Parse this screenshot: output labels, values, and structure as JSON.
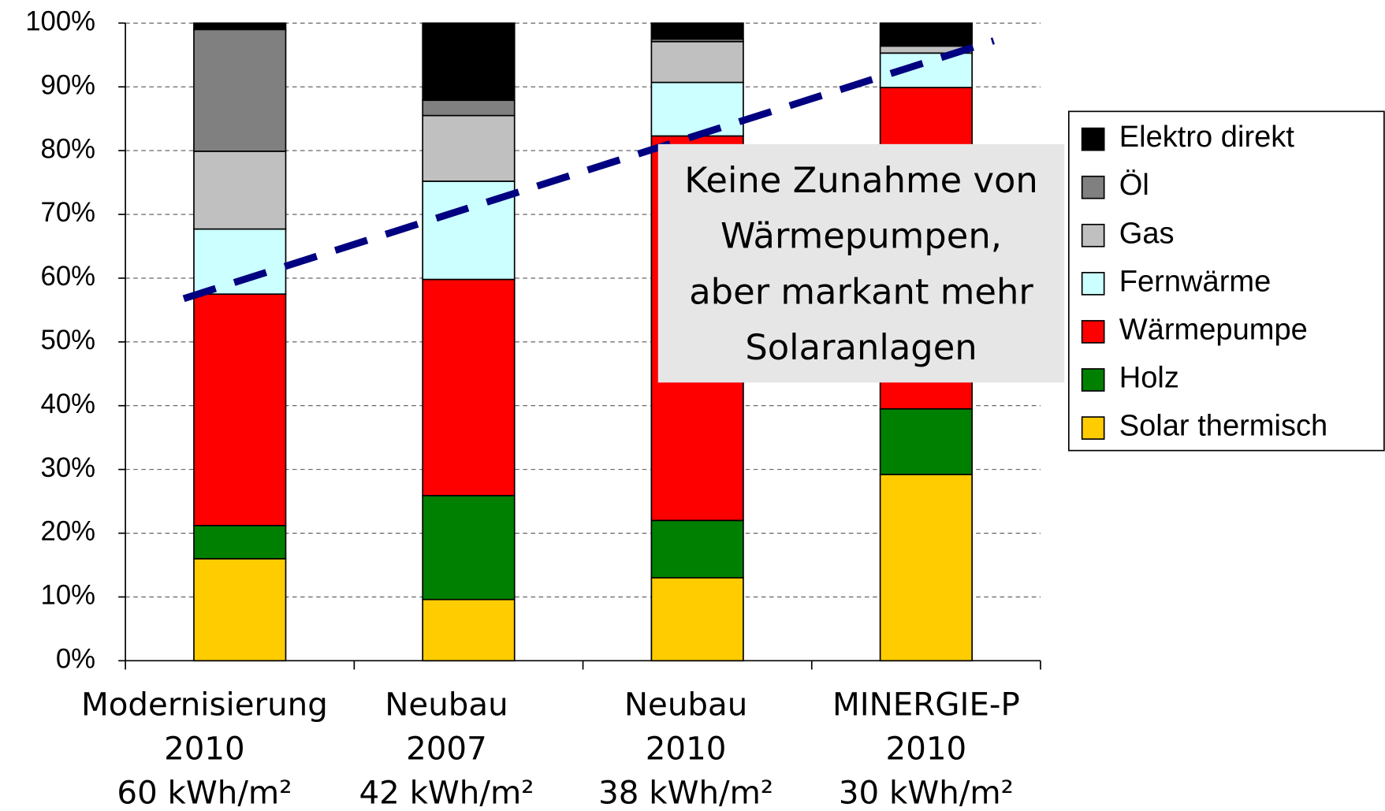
{
  "chart_data": {
    "type": "stacked_bar",
    "categories": [
      [
        "Modernisierung",
        "2010",
        "60 kWh/m²"
      ],
      [
        "Neubau",
        "2007",
        "42 kWh/m²"
      ],
      [
        "Neubau",
        "2010",
        "38 kWh/m²"
      ],
      [
        "MINERGIE-P",
        "2010",
        "30 kWh/m²"
      ]
    ],
    "series": [
      {
        "name": "Solar thermisch",
        "color": "#ffcc00",
        "values": [
          16,
          9.6,
          13,
          29.2
        ]
      },
      {
        "name": "Holz",
        "color": "#008000",
        "values": [
          5.2,
          16.3,
          9,
          10.3
        ]
      },
      {
        "name": "Wärmepumpe",
        "color": "#ff0000",
        "values": [
          36.3,
          33.9,
          60.3,
          50.4
        ]
      },
      {
        "name": "Fernwärme",
        "color": "#ccffff",
        "values": [
          10.2,
          15.4,
          8.4,
          5.4
        ]
      },
      {
        "name": "Gas",
        "color": "#c0c0c0",
        "values": [
          12.2,
          10.3,
          6.4,
          1.1
        ]
      },
      {
        "name": "Öl",
        "color": "#808080",
        "values": [
          19.1,
          2.4,
          0.4,
          0
        ]
      },
      {
        "name": "Elektro direkt",
        "color": "#000000",
        "values": [
          1,
          12.1,
          2.5,
          3.6
        ]
      }
    ],
    "ylim": [
      0,
      100
    ],
    "yticks": [
      {
        "value": 0,
        "label": "0%"
      },
      {
        "value": 10,
        "label": "10%"
      },
      {
        "value": 20,
        "label": "20%"
      },
      {
        "value": 30,
        "label": "30%"
      },
      {
        "value": 40,
        "label": "40%"
      },
      {
        "value": 50,
        "label": "50%"
      },
      {
        "value": 60,
        "label": "60%"
      },
      {
        "value": 70,
        "label": "70%"
      },
      {
        "value": 80,
        "label": "80%"
      },
      {
        "value": 90,
        "label": "90%"
      },
      {
        "value": 100,
        "label": "100%"
      }
    ],
    "grid": true,
    "legend": "right",
    "annotation": [
      "Keine Zunahme von",
      "Wärmepumpen,",
      "aber markant mehr",
      "Solaranlagen"
    ]
  }
}
